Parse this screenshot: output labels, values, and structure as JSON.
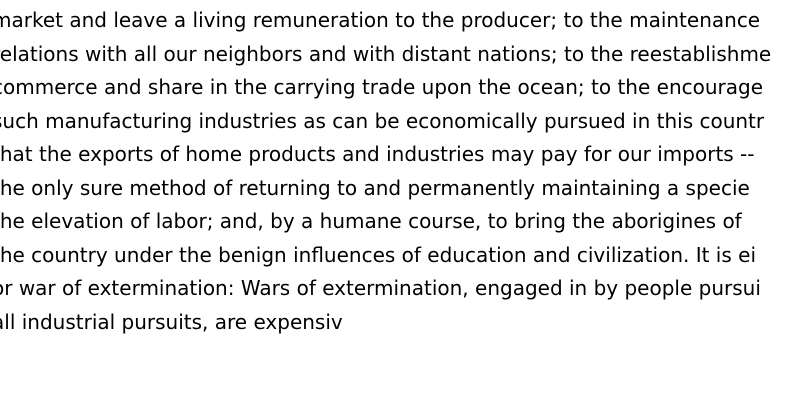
{
  "document": {
    "lines": [
      "market and leave a living remuneration to the producer; to the maintenance",
      "relations with all our neighbors and with distant nations; to the reestablishme",
      "commerce and share in the carrying trade upon the ocean; to the encourage",
      "such manufacturing industries as can be economically pursued in this countr",
      "that the exports of home products and industries may pay for our imports --",
      "the only sure method of returning to and permanently maintaining a specie",
      "the elevation of labor; and, by a humane course, to bring the aborigines of",
      "the country under the benign influences of education and civilization. It is ei",
      "or war of extermination: Wars of extermination, engaged in by people pursui",
      "all industrial pursuits, are expensiv"
    ]
  }
}
